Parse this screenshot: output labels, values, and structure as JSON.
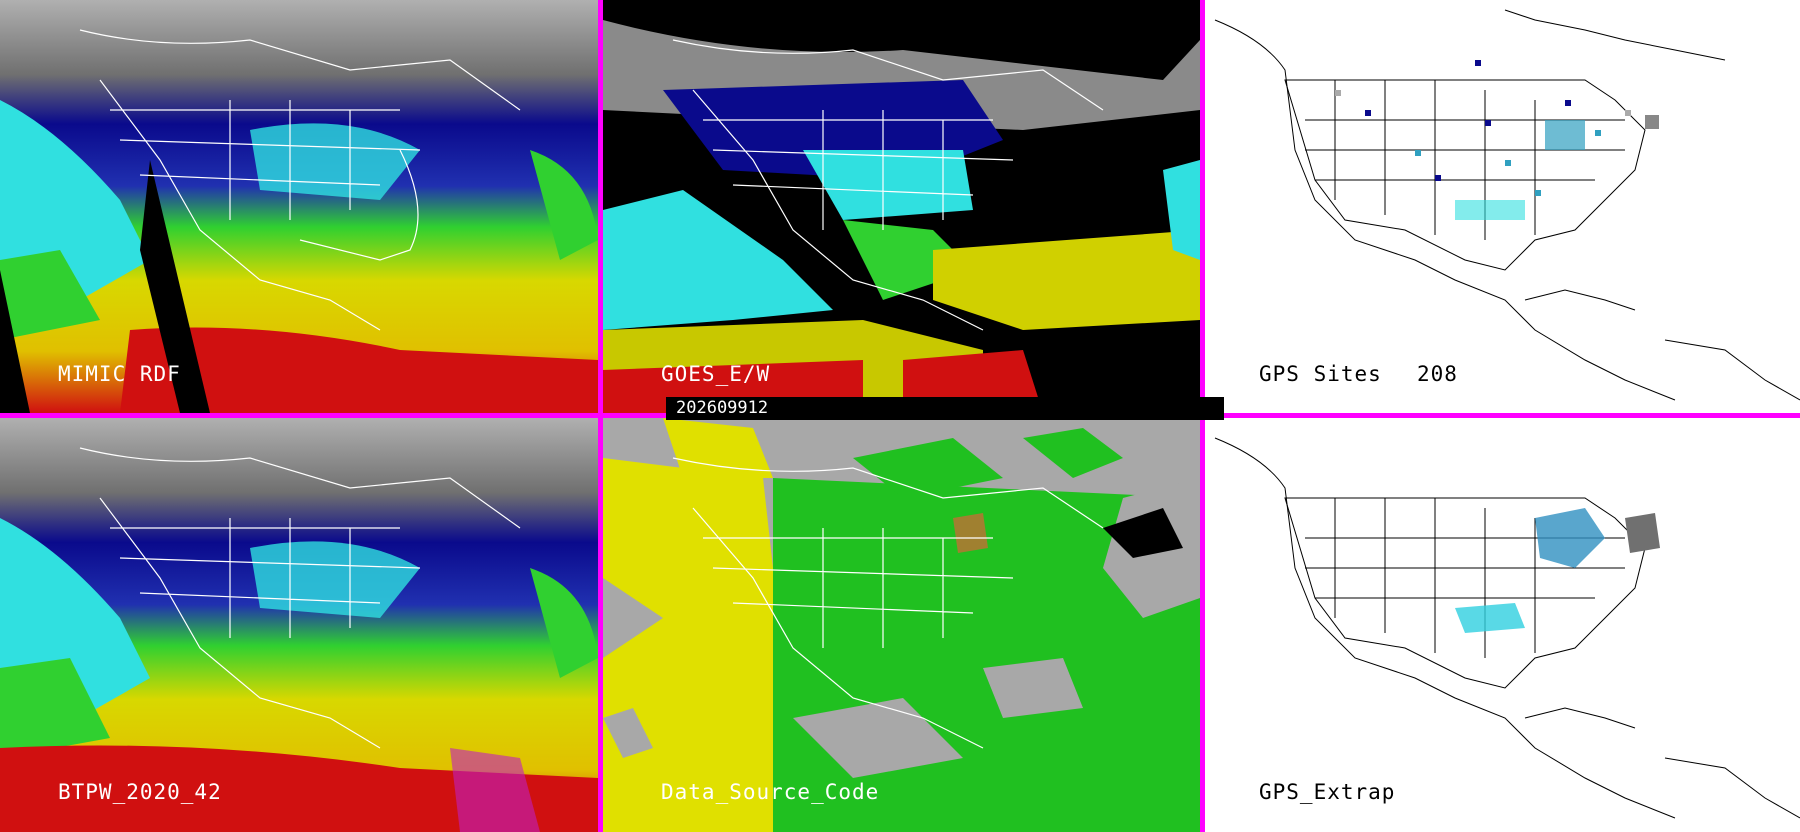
{
  "panels": {
    "mimic": {
      "label": "MIMIC RDF"
    },
    "goes": {
      "label": "GOES_E/W"
    },
    "gps_sites": {
      "label": "GPS Sites",
      "count": "208"
    },
    "btpw": {
      "label": "BTPW_2020_42"
    },
    "data_source": {
      "label": "Data_Source_Code"
    },
    "gps_extrap": {
      "label": "GPS_Extrap"
    }
  },
  "timestamp": "202609912",
  "colors": {
    "border": "#ff00ff",
    "gray": "#9a9a9a",
    "navy": "#0a0a8c",
    "blue": "#3050c8",
    "cyan": "#30e0e0",
    "green": "#30d030",
    "yellow": "#e0e000",
    "red": "#d01010",
    "magenta": "#c020c0"
  }
}
